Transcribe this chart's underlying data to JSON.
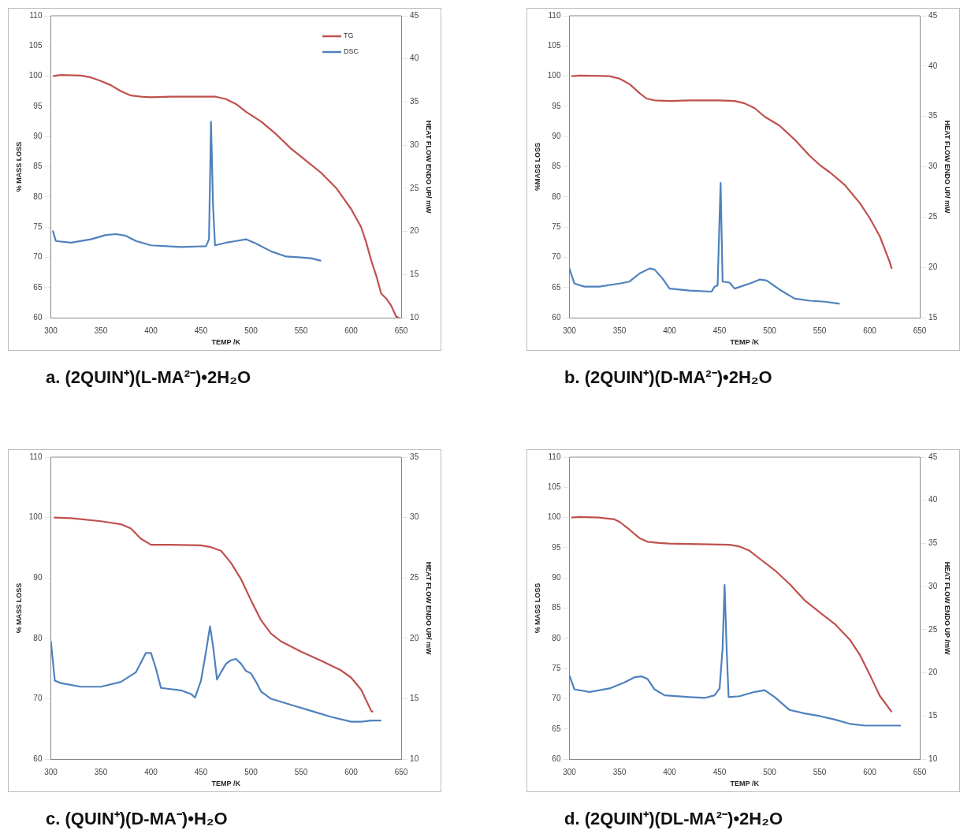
{
  "chart_data": [
    {
      "type": "line",
      "title": "a.  (2QUIN⁺)(L-MA²⁻)•2H₂O",
      "xlabel": "TEMP /K",
      "ylabel": "% MASS LOSS",
      "y2label": "HEAT FLOW ENDO UP/ mW",
      "xlim": [
        300,
        650
      ],
      "xticks": [
        300,
        350,
        400,
        450,
        500,
        550,
        600,
        650
      ],
      "ylim": [
        60,
        110
      ],
      "yticks": [
        60,
        65,
        70,
        75,
        80,
        85,
        90,
        95,
        100,
        105,
        110
      ],
      "y2lim": [
        10,
        45
      ],
      "y2ticks": [
        10,
        15,
        20,
        25,
        30,
        35,
        40,
        45
      ],
      "legend": "top right",
      "marker": "none",
      "series": [
        {
          "name": "TG",
          "color": "#c0504d",
          "x": [
            302,
            310,
            330,
            340,
            350,
            360,
            370,
            380,
            390,
            400,
            420,
            450,
            465,
            475,
            485,
            495,
            510,
            525,
            540,
            555,
            570,
            585,
            600,
            610,
            615,
            620,
            625,
            630,
            635,
            640,
            645,
            648
          ],
          "values": [
            100,
            100.2,
            100.1,
            99.8,
            99.2,
            98.5,
            97.5,
            96.8,
            96.6,
            96.5,
            96.6,
            96.6,
            96.6,
            96.2,
            95.4,
            94.1,
            92.5,
            90.4,
            88,
            86,
            84,
            81.5,
            78,
            75,
            72.5,
            69.5,
            67,
            64,
            63.2,
            62,
            60.2,
            60
          ]
        },
        {
          "name": "DSC",
          "color": "#4f81bd",
          "axis": "y2",
          "x": [
            302,
            305,
            320,
            340,
            355,
            365,
            375,
            385,
            400,
            430,
            455,
            458,
            460,
            462,
            464,
            475,
            485,
            495,
            505,
            520,
            535,
            550,
            560,
            570
          ],
          "values": [
            20.1,
            18.9,
            18.7,
            19.1,
            19.6,
            19.7,
            19.5,
            18.9,
            18.4,
            18.2,
            18.3,
            19.1,
            32.7,
            23.1,
            18.4,
            18.7,
            18.9,
            19.1,
            18.6,
            17.7,
            17.1,
            17,
            16.9,
            16.6
          ]
        }
      ]
    },
    {
      "type": "line",
      "title": "b.  (2QUIN⁺)(D-MA²⁻)•2H₂O",
      "xlabel": "TEMP /K",
      "ylabel": "%MASS LOSS",
      "y2label": "HEAT FLOW ENDO UP/ mW",
      "xlim": [
        300,
        650
      ],
      "xticks": [
        300,
        350,
        400,
        450,
        500,
        550,
        600,
        650
      ],
      "ylim": [
        60,
        110
      ],
      "yticks": [
        60,
        65,
        70,
        75,
        80,
        85,
        90,
        95,
        100,
        105,
        110
      ],
      "y2lim": [
        15,
        45
      ],
      "y2ticks": [
        15,
        20,
        25,
        30,
        35,
        40,
        45
      ],
      "marker": "none",
      "series": [
        {
          "color": "#c0504d",
          "x": [
            302,
            310,
            340,
            350,
            360,
            370,
            377,
            385,
            400,
            420,
            450,
            465,
            475,
            485,
            495,
            510,
            525,
            540,
            550,
            560,
            575,
            590,
            600,
            610,
            620,
            622
          ],
          "values": [
            100,
            100.1,
            100,
            99.6,
            98.7,
            97.2,
            96.3,
            96,
            95.9,
            96,
            96,
            95.9,
            95.5,
            94.7,
            93.3,
            91.8,
            89.5,
            86.8,
            85.3,
            84.1,
            82,
            79,
            76.5,
            73.5,
            69.2,
            68.1
          ]
        },
        {
          "color": "#4f81bd",
          "axis": "y2",
          "x": [
            300,
            305,
            315,
            330,
            350,
            360,
            370,
            380,
            385,
            393,
            400,
            420,
            442,
            445,
            448,
            451,
            453,
            460,
            465,
            480,
            490,
            497,
            510,
            525,
            540,
            555,
            570
          ],
          "values": [
            19.9,
            18.4,
            18.1,
            18.1,
            18.4,
            18.6,
            19.4,
            19.9,
            19.8,
            18.9,
            17.9,
            17.7,
            17.6,
            18.1,
            18.2,
            28.4,
            18.6,
            18.5,
            17.9,
            18.4,
            18.8,
            18.7,
            17.8,
            16.9,
            16.7,
            16.6,
            16.4
          ]
        }
      ]
    },
    {
      "type": "line",
      "title": "c.  (QUIN⁺)(D-MA⁻)•H₂O",
      "xlabel": "TEMP /K",
      "ylabel": "% MASS LOSS",
      "y2label": "HEAT FLOW ENDO UP/ mW",
      "xlim": [
        300,
        650
      ],
      "xticks": [
        300,
        350,
        400,
        450,
        500,
        550,
        600,
        650
      ],
      "ylim": [
        60,
        110
      ],
      "yticks": [
        60,
        70,
        80,
        90,
        100,
        110
      ],
      "y2lim": [
        10,
        35
      ],
      "y2ticks": [
        10,
        15,
        20,
        25,
        30,
        35
      ],
      "marker": "none",
      "series": [
        {
          "color": "#c0504d",
          "x": [
            303,
            320,
            350,
            370,
            380,
            390,
            400,
            420,
            450,
            460,
            470,
            480,
            490,
            500,
            510,
            520,
            530,
            550,
            570,
            590,
            600,
            610,
            620,
            622
          ],
          "values": [
            100,
            99.9,
            99.4,
            98.9,
            98.2,
            96.5,
            95.5,
            95.5,
            95.4,
            95.1,
            94.5,
            92.5,
            89.8,
            86.3,
            83,
            80.8,
            79.5,
            77.8,
            76.3,
            74.7,
            73.5,
            71.5,
            68,
            67.8
          ]
        },
        {
          "color": "#4f81bd",
          "axis": "y2",
          "x": [
            300,
            304,
            310,
            330,
            350,
            370,
            385,
            395,
            400,
            405,
            410,
            430,
            440,
            444,
            450,
            455,
            459,
            462,
            466,
            470,
            475,
            480,
            485,
            490,
            495,
            500,
            505,
            510,
            520,
            540,
            560,
            580,
            600,
            610,
            620,
            630
          ],
          "values": [
            19.8,
            16.5,
            16.3,
            16,
            16,
            16.4,
            17.2,
            18.8,
            18.8,
            17.5,
            15.9,
            15.7,
            15.4,
            15.1,
            16.5,
            18.9,
            21,
            19.4,
            16.6,
            17.2,
            17.9,
            18.2,
            18.3,
            17.9,
            17.3,
            17.1,
            16.4,
            15.6,
            15,
            14.5,
            14,
            13.5,
            13.1,
            13.1,
            13.2,
            13.2
          ]
        }
      ]
    },
    {
      "type": "line",
      "title": "d.  (2QUIN⁺)(DL-MA²⁻)•2H₂O",
      "xlabel": "TEMP /K",
      "ylabel": "% MASS LOSS",
      "y2label": "HEAT FLOW ENDO UP /mW",
      "xlim": [
        300,
        650
      ],
      "xticks": [
        300,
        350,
        400,
        450,
        500,
        550,
        600,
        650
      ],
      "ylim": [
        60,
        110
      ],
      "yticks": [
        60,
        65,
        70,
        75,
        80,
        85,
        90,
        95,
        100,
        105,
        110
      ],
      "y2lim": [
        10,
        45
      ],
      "y2ticks": [
        10,
        15,
        20,
        25,
        30,
        35,
        40,
        45
      ],
      "marker": "none",
      "series": [
        {
          "color": "#c0504d",
          "x": [
            302,
            310,
            330,
            345,
            350,
            360,
            370,
            378,
            390,
            400,
            430,
            460,
            470,
            480,
            490,
            505,
            520,
            535,
            550,
            565,
            580,
            590,
            600,
            610,
            622
          ],
          "values": [
            100,
            100.1,
            100,
            99.7,
            99.3,
            98,
            96.6,
            96,
            95.8,
            95.7,
            95.6,
            95.5,
            95.2,
            94.5,
            93.2,
            91.3,
            89,
            86.3,
            84.3,
            82.4,
            79.8,
            77.3,
            74,
            70.5,
            67.8
          ]
        },
        {
          "color": "#4f81bd",
          "axis": "y2",
          "x": [
            300,
            305,
            320,
            340,
            355,
            365,
            372,
            378,
            385,
            395,
            420,
            435,
            445,
            450,
            453,
            455,
            457,
            459,
            470,
            485,
            495,
            505,
            520,
            535,
            550,
            565,
            580,
            595,
            610,
            631
          ],
          "values": [
            19.7,
            18.1,
            17.8,
            18.2,
            18.9,
            19.5,
            19.6,
            19.3,
            18.1,
            17.4,
            17.2,
            17.1,
            17.4,
            18.2,
            22.9,
            30.2,
            22.9,
            17.2,
            17.3,
            17.8,
            18,
            17.2,
            15.7,
            15.3,
            15,
            14.6,
            14.1,
            13.9,
            13.9,
            13.9
          ]
        }
      ]
    }
  ]
}
